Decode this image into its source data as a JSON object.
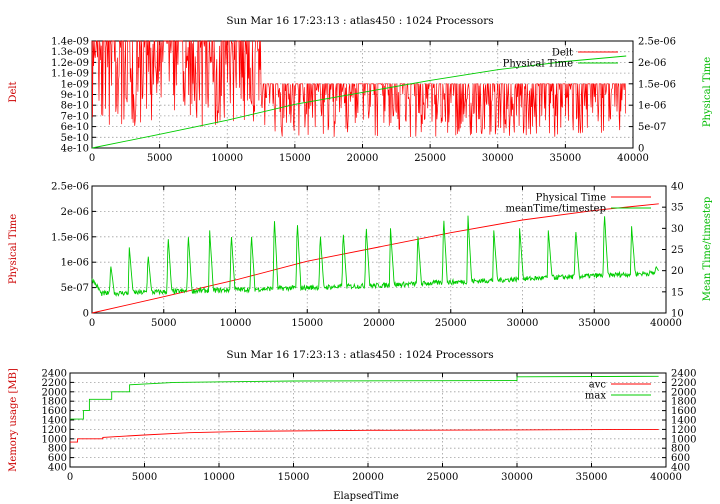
{
  "chart_data": [
    {
      "type": "line",
      "title": "Sun Mar 16 17:23:13 : atlas450 : 1024 Processors",
      "ylabel": "Delt",
      "y2label": "Physical Time",
      "xlim": [
        0,
        40000
      ],
      "ylim": [
        4e-10,
        1.4e-09
      ],
      "y2lim": [
        0,
        2.5e-06
      ],
      "xticks": [
        "0",
        "5000",
        "10000",
        "15000",
        "20000",
        "25000",
        "30000",
        "35000",
        "40000"
      ],
      "yticks": [
        "4e-10",
        "5e-10",
        "6e-10",
        "7e-10",
        "8e-10",
        "9e-10",
        "1e-09",
        "1.1e-09",
        "1.2e-09",
        "1.3e-09",
        "1.4e-09"
      ],
      "y2ticks": [
        "0",
        "5e-07",
        "1e-06",
        "1.5e-06",
        "2e-06",
        "2.5e-06"
      ],
      "legend_position": "top-right",
      "grid": true,
      "series": [
        {
          "name": "Delt",
          "axis": "left",
          "color": "#ff0000",
          "style": "oscillating",
          "segments": [
            {
              "x0": 0,
              "x1": 12500,
              "low": 6e-10,
              "high": 1.4e-09,
              "typical_low": 9e-10
            },
            {
              "x0": 12500,
              "x1": 39500,
              "low": 5e-10,
              "high": 1e-09,
              "typical_low": 7e-10
            }
          ]
        },
        {
          "name": "Physical Time",
          "axis": "right",
          "color": "#00cc00",
          "x": [
            0,
            5000,
            10000,
            15000,
            20000,
            25000,
            30000,
            35000,
            39500
          ],
          "y": [
            0,
            3.2e-07,
            6.5e-07,
            1.02e-06,
            1.3e-06,
            1.58e-06,
            1.83e-06,
            2.02e-06,
            2.15e-06
          ]
        }
      ]
    },
    {
      "type": "line",
      "title": "",
      "ylabel": "Physical Time",
      "y2label": "Mean Time/timestep",
      "xlim": [
        0,
        40000
      ],
      "ylim": [
        0,
        2.5e-06
      ],
      "y2lim": [
        10,
        40
      ],
      "xticks": [
        "0",
        "5000",
        "10000",
        "15000",
        "20000",
        "25000",
        "30000",
        "35000",
        "40000"
      ],
      "yticks": [
        "0",
        "5e-07",
        "1e-06",
        "1.5e-06",
        "2e-06",
        "2.5e-06"
      ],
      "y2ticks": [
        "10",
        "15",
        "20",
        "25",
        "30",
        "35",
        "40"
      ],
      "legend_position": "top-right",
      "grid": true,
      "series": [
        {
          "name": "Physical Time",
          "axis": "left",
          "color": "#ff0000",
          "x": [
            0,
            5000,
            10000,
            15000,
            20000,
            25000,
            30000,
            35000,
            39500
          ],
          "y": [
            0,
            3.2e-07,
            6.5e-07,
            1.02e-06,
            1.3e-06,
            1.58e-06,
            1.83e-06,
            2.02e-06,
            2.15e-06
          ]
        },
        {
          "name": "meanTime/timestep",
          "axis": "right",
          "color": "#00cc00",
          "baseline": [
            {
              "x": 0,
              "y": 14.5
            },
            {
              "x": 20000,
              "y": 16.5
            },
            {
              "x": 39500,
              "y": 19.5
            }
          ],
          "spikes": [
            {
              "x": 1300,
              "y": 21.5
            },
            {
              "x": 2600,
              "y": 25.5
            },
            {
              "x": 3900,
              "y": 24
            },
            {
              "x": 5300,
              "y": 28.5
            },
            {
              "x": 6700,
              "y": 29
            },
            {
              "x": 8200,
              "y": 29.5
            },
            {
              "x": 9700,
              "y": 29
            },
            {
              "x": 11100,
              "y": 29
            },
            {
              "x": 12700,
              "y": 33
            },
            {
              "x": 14300,
              "y": 32
            },
            {
              "x": 15900,
              "y": 29
            },
            {
              "x": 17500,
              "y": 29.5
            },
            {
              "x": 19100,
              "y": 31
            },
            {
              "x": 20800,
              "y": 30
            },
            {
              "x": 22700,
              "y": 29
            },
            {
              "x": 24500,
              "y": 33
            },
            {
              "x": 26200,
              "y": 33
            },
            {
              "x": 28000,
              "y": 29.5
            },
            {
              "x": 29800,
              "y": 30
            },
            {
              "x": 31800,
              "y": 29.5
            },
            {
              "x": 33700,
              "y": 30
            },
            {
              "x": 35700,
              "y": 34
            },
            {
              "x": 37600,
              "y": 30.5
            },
            {
              "x": 39300,
              "y": 21
            }
          ]
        }
      ]
    },
    {
      "type": "line",
      "title": "Sun Mar 16 17:23:13 : atlas450 : 1024 Processors",
      "xlabel": "ElapsedTime",
      "ylabel": "Memory usage [MB]",
      "xlim": [
        0,
        40000
      ],
      "ylim": [
        400,
        2400
      ],
      "y2lim": [
        400,
        2400
      ],
      "xticks": [
        "0",
        "5000",
        "10000",
        "15000",
        "20000",
        "25000",
        "30000",
        "35000",
        "40000"
      ],
      "yticks": [
        "400",
        "600",
        "800",
        "1000",
        "1200",
        "1400",
        "1600",
        "1800",
        "2000",
        "2200",
        "2400"
      ],
      "y2ticks": [
        "400",
        "600",
        "800",
        "1000",
        "1200",
        "1400",
        "1600",
        "1800",
        "2000",
        "2200",
        "2400"
      ],
      "legend_position": "top-right",
      "grid": true,
      "series": [
        {
          "name": "avc",
          "color": "#ff0000",
          "x": [
            0,
            500,
            500,
            2200,
            2200,
            5000,
            8000,
            12000,
            20000,
            30000,
            39500
          ],
          "y": [
            930,
            930,
            1000,
            1000,
            1030,
            1080,
            1130,
            1160,
            1180,
            1190,
            1200
          ]
        },
        {
          "name": "max",
          "color": "#00cc00",
          "x": [
            0,
            900,
            900,
            1300,
            1300,
            2800,
            2800,
            4000,
            4000,
            7000,
            15000,
            30000,
            30000,
            39500
          ],
          "y": [
            1420,
            1420,
            1600,
            1600,
            1840,
            1840,
            2000,
            2000,
            2150,
            2200,
            2230,
            2240,
            2320,
            2330
          ]
        }
      ]
    }
  ]
}
